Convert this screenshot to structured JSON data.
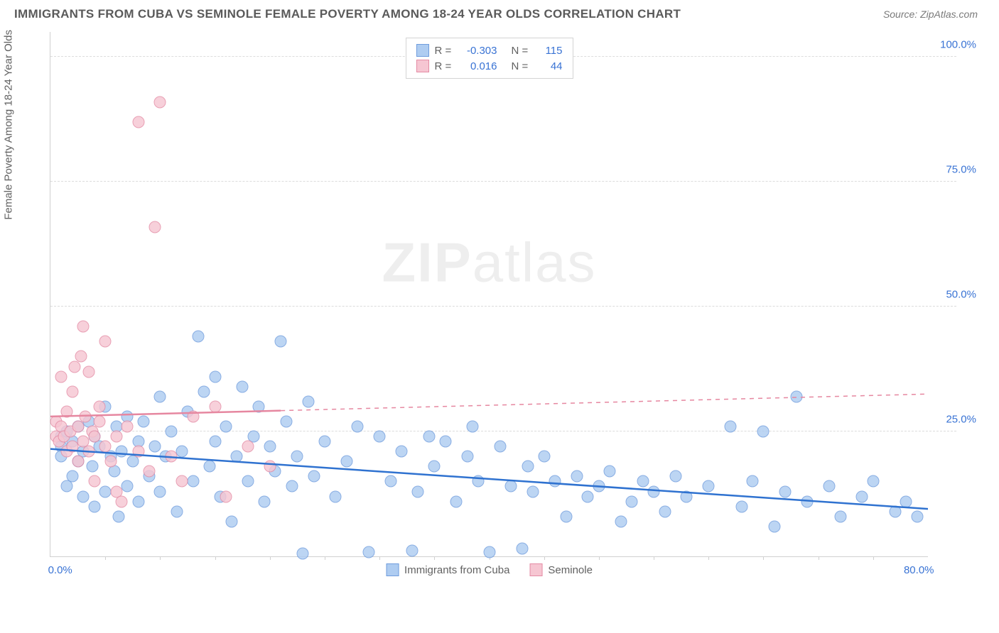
{
  "header": {
    "title": "IMMIGRANTS FROM CUBA VS SEMINOLE FEMALE POVERTY AMONG 18-24 YEAR OLDS CORRELATION CHART",
    "source_label": "Source:",
    "source_value": "ZipAtlas.com"
  },
  "watermark": {
    "pre": "ZIP",
    "post": "atlas"
  },
  "chart": {
    "type": "scatter",
    "y_axis_label": "Female Poverty Among 18-24 Year Olds",
    "xlim": [
      0,
      80
    ],
    "ylim": [
      0,
      105
    ],
    "x_ticks_minor": [
      5,
      10,
      15,
      20,
      25,
      30,
      35,
      40,
      45,
      50,
      55,
      60,
      65,
      70,
      75
    ],
    "x_tick_labels": [
      {
        "pos": 0,
        "text": "0.0%"
      },
      {
        "pos": 80,
        "text": "80.0%"
      }
    ],
    "y_tick_labels": [
      {
        "pos": 25,
        "text": "25.0%"
      },
      {
        "pos": 50,
        "text": "50.0%"
      },
      {
        "pos": 75,
        "text": "75.0%"
      },
      {
        "pos": 100,
        "text": "100.0%"
      }
    ],
    "grid_color": "#dcdcdc",
    "axis_color": "#d0d0d0",
    "background_color": "#ffffff",
    "series": [
      {
        "name": "Immigrants from Cuba",
        "fill_color": "#aeccf1",
        "stroke_color": "#6f9cdd",
        "line_color": "#2f72d0",
        "line_width": 2.5,
        "dash_after_x": 80,
        "R": "-0.303",
        "N": "115",
        "trend": {
          "x1": 0,
          "y1": 21.5,
          "x2": 80,
          "y2": 9.5
        },
        "points": [
          [
            1,
            22
          ],
          [
            1,
            24
          ],
          [
            1,
            20
          ],
          [
            1.5,
            25
          ],
          [
            1.5,
            14
          ],
          [
            2,
            23
          ],
          [
            2,
            16
          ],
          [
            2.5,
            26
          ],
          [
            2.5,
            19
          ],
          [
            3,
            21
          ],
          [
            3,
            12
          ],
          [
            3.5,
            27
          ],
          [
            3.8,
            18
          ],
          [
            4,
            24
          ],
          [
            4,
            10
          ],
          [
            4.5,
            22
          ],
          [
            5,
            30
          ],
          [
            5,
            13
          ],
          [
            5.5,
            20
          ],
          [
            5.8,
            17
          ],
          [
            6,
            26
          ],
          [
            6.2,
            8
          ],
          [
            6.5,
            21
          ],
          [
            7,
            28
          ],
          [
            7,
            14
          ],
          [
            7.5,
            19
          ],
          [
            8,
            23
          ],
          [
            8,
            11
          ],
          [
            8.5,
            27
          ],
          [
            9,
            16
          ],
          [
            9.5,
            22
          ],
          [
            10,
            32
          ],
          [
            10,
            13
          ],
          [
            10.5,
            20
          ],
          [
            11,
            25
          ],
          [
            11.5,
            9
          ],
          [
            12,
            21
          ],
          [
            12.5,
            29
          ],
          [
            13,
            15
          ],
          [
            13.5,
            44
          ],
          [
            14,
            33
          ],
          [
            14.5,
            18
          ],
          [
            15,
            36
          ],
          [
            15,
            23
          ],
          [
            15.5,
            12
          ],
          [
            16,
            26
          ],
          [
            16.5,
            7
          ],
          [
            17,
            20
          ],
          [
            17.5,
            34
          ],
          [
            18,
            15
          ],
          [
            18.5,
            24
          ],
          [
            19,
            30
          ],
          [
            19.5,
            11
          ],
          [
            20,
            22
          ],
          [
            20.5,
            17
          ],
          [
            21,
            43
          ],
          [
            21.5,
            27
          ],
          [
            22,
            14
          ],
          [
            22.5,
            20
          ],
          [
            23,
            0.5
          ],
          [
            23.5,
            31
          ],
          [
            24,
            16
          ],
          [
            25,
            23
          ],
          [
            26,
            12
          ],
          [
            27,
            19
          ],
          [
            28,
            26
          ],
          [
            29,
            0.8
          ],
          [
            30,
            24
          ],
          [
            31,
            15
          ],
          [
            32,
            21
          ],
          [
            33,
            1.2
          ],
          [
            33.5,
            13
          ],
          [
            34.5,
            24
          ],
          [
            35,
            18
          ],
          [
            36,
            23
          ],
          [
            37,
            11
          ],
          [
            38,
            20
          ],
          [
            38.5,
            26
          ],
          [
            39,
            15
          ],
          [
            40,
            0.9
          ],
          [
            41,
            22
          ],
          [
            42,
            14
          ],
          [
            43,
            1.5
          ],
          [
            43.5,
            18
          ],
          [
            44,
            13
          ],
          [
            45,
            20
          ],
          [
            46,
            15
          ],
          [
            47,
            8
          ],
          [
            48,
            16
          ],
          [
            49,
            12
          ],
          [
            50,
            14
          ],
          [
            51,
            17
          ],
          [
            52,
            7
          ],
          [
            53,
            11
          ],
          [
            54,
            15
          ],
          [
            55,
            13
          ],
          [
            56,
            9
          ],
          [
            57,
            16
          ],
          [
            58,
            12
          ],
          [
            60,
            14
          ],
          [
            62,
            26
          ],
          [
            63,
            10
          ],
          [
            64,
            15
          ],
          [
            65,
            25
          ],
          [
            66,
            6
          ],
          [
            67,
            13
          ],
          [
            68,
            32
          ],
          [
            69,
            11
          ],
          [
            71,
            14
          ],
          [
            72,
            8
          ],
          [
            74,
            12
          ],
          [
            75,
            15
          ],
          [
            77,
            9
          ],
          [
            78,
            11
          ],
          [
            79,
            8
          ]
        ]
      },
      {
        "name": "Seminole",
        "fill_color": "#f6c6d2",
        "stroke_color": "#e48ba4",
        "line_color": "#e687a0",
        "line_width": 2.5,
        "dash_after_x": 21,
        "R": "0.016",
        "N": "44",
        "trend": {
          "x1": 0,
          "y1": 28.0,
          "x2": 80,
          "y2": 32.5
        },
        "points": [
          [
            0.5,
            24
          ],
          [
            0.5,
            27
          ],
          [
            0.8,
            23
          ],
          [
            1,
            26
          ],
          [
            1,
            36
          ],
          [
            1.2,
            24
          ],
          [
            1.5,
            21
          ],
          [
            1.5,
            29
          ],
          [
            1.8,
            25
          ],
          [
            2,
            33
          ],
          [
            2,
            22
          ],
          [
            2.2,
            38
          ],
          [
            2.5,
            26
          ],
          [
            2.5,
            19
          ],
          [
            2.8,
            40
          ],
          [
            3,
            23
          ],
          [
            3,
            46
          ],
          [
            3.2,
            28
          ],
          [
            3.5,
            21
          ],
          [
            3.5,
            37
          ],
          [
            3.8,
            25
          ],
          [
            4,
            24
          ],
          [
            4,
            15
          ],
          [
            4.5,
            30
          ],
          [
            4.5,
            27
          ],
          [
            5,
            22
          ],
          [
            5,
            43
          ],
          [
            5.5,
            19
          ],
          [
            6,
            24
          ],
          [
            6,
            13
          ],
          [
            6.5,
            11
          ],
          [
            7,
            26
          ],
          [
            8,
            21
          ],
          [
            8,
            87
          ],
          [
            9,
            17
          ],
          [
            9.5,
            66
          ],
          [
            10,
            91
          ],
          [
            11,
            20
          ],
          [
            12,
            15
          ],
          [
            13,
            28
          ],
          [
            15,
            30
          ],
          [
            16,
            12
          ],
          [
            18,
            22
          ],
          [
            20,
            18
          ]
        ]
      }
    ],
    "legend_bottom": [
      {
        "swatch_fill": "#aeccf1",
        "swatch_stroke": "#6f9cdd",
        "label": "Immigrants from Cuba"
      },
      {
        "swatch_fill": "#f6c6d2",
        "swatch_stroke": "#e48ba4",
        "label": "Seminole"
      }
    ],
    "legend_top_labels": {
      "R": "R =",
      "N": "N ="
    }
  }
}
